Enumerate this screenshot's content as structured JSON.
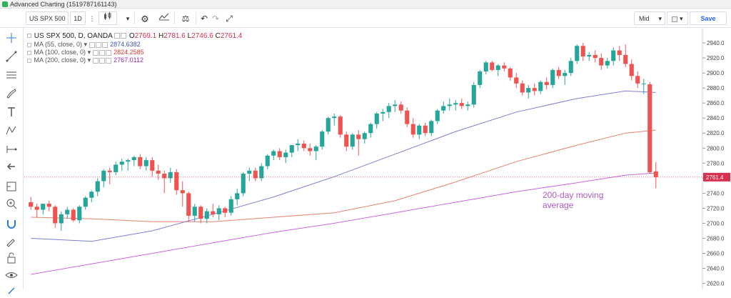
{
  "window_title": "Advanced Charting (1519787161143)",
  "toolbar": {
    "symbol": "US SPX 500",
    "interval": "1D",
    "price_type": "Mid",
    "save_label": "Save"
  },
  "legend": {
    "symbol_line": "US SPX 500, D, OANDA",
    "open_label": "O",
    "open": "2769.1",
    "high_label": "H",
    "high": "2781.6",
    "low_label": "L",
    "low": "2746.6",
    "close_label": "C",
    "close": "2761.4",
    "studies": [
      {
        "label": "MA (55, close, 0)",
        "value": "2874.6382",
        "color": "#3f51b5"
      },
      {
        "label": "MA (100, close, 0)",
        "value": "2824.2585",
        "color": "#e53935"
      },
      {
        "label": "MA (200, close, 0)",
        "value": "2767.0112",
        "color": "#9c27b0"
      }
    ]
  },
  "colors": {
    "up": "#26a69a",
    "down": "#ef5350",
    "ma55": "#7b7fd4",
    "ma100": "#e9826f",
    "ma200": "#cc66e0",
    "last_price": "#d9304f"
  },
  "chart_data": {
    "type": "candlestick",
    "title": "",
    "ylim": [
      2612,
      2960
    ],
    "y_ticks": [
      "2940.0",
      "2920.0",
      "2900.0",
      "2880.0",
      "2860.0",
      "2840.0",
      "2820.0",
      "2800.0",
      "2780.0",
      "2760.0",
      "2740.0",
      "2720.0",
      "2700.0",
      "2680.0",
      "2660.0",
      "2640.0",
      "2620.0"
    ],
    "last_price_label": "2761.4",
    "annotation": [
      "200-day moving",
      "average"
    ],
    "candles": [
      [
        2728,
        2735,
        2718,
        2722
      ],
      [
        2722,
        2726,
        2708,
        2718
      ],
      [
        2718,
        2724,
        2712,
        2726
      ],
      [
        2726,
        2730,
        2716,
        2722
      ],
      [
        2722,
        2724,
        2694,
        2700
      ],
      [
        2700,
        2716,
        2690,
        2712
      ],
      [
        2712,
        2722,
        2706,
        2718
      ],
      [
        2718,
        2720,
        2702,
        2704
      ],
      [
        2704,
        2724,
        2700,
        2722
      ],
      [
        2722,
        2736,
        2718,
        2734
      ],
      [
        2734,
        2744,
        2728,
        2742
      ],
      [
        2742,
        2760,
        2736,
        2756
      ],
      [
        2756,
        2772,
        2748,
        2770
      ],
      [
        2770,
        2774,
        2752,
        2768
      ],
      [
        2768,
        2782,
        2764,
        2778
      ],
      [
        2778,
        2786,
        2770,
        2782
      ],
      [
        2782,
        2786,
        2770,
        2784
      ],
      [
        2784,
        2790,
        2776,
        2788
      ],
      [
        2788,
        2792,
        2772,
        2776
      ],
      [
        2776,
        2788,
        2770,
        2784
      ],
      [
        2784,
        2788,
        2762,
        2770
      ],
      [
        2770,
        2778,
        2758,
        2766
      ],
      [
        2766,
        2770,
        2740,
        2760
      ],
      [
        2760,
        2774,
        2754,
        2768
      ],
      [
        2768,
        2772,
        2738,
        2744
      ],
      [
        2744,
        2756,
        2722,
        2740
      ],
      [
        2740,
        2742,
        2702,
        2710
      ],
      [
        2710,
        2726,
        2702,
        2722
      ],
      [
        2722,
        2724,
        2700,
        2706
      ],
      [
        2706,
        2720,
        2700,
        2716
      ],
      [
        2716,
        2726,
        2708,
        2712
      ],
      [
        2712,
        2724,
        2704,
        2720
      ],
      [
        2720,
        2722,
        2708,
        2714
      ],
      [
        2714,
        2736,
        2710,
        2732
      ],
      [
        2732,
        2746,
        2724,
        2740
      ],
      [
        2740,
        2768,
        2736,
        2766
      ],
      [
        2766,
        2774,
        2756,
        2770
      ],
      [
        2770,
        2774,
        2756,
        2760
      ],
      [
        2760,
        2780,
        2756,
        2776
      ],
      [
        2776,
        2792,
        2772,
        2790
      ],
      [
        2790,
        2798,
        2784,
        2796
      ],
      [
        2796,
        2800,
        2784,
        2788
      ],
      [
        2788,
        2798,
        2780,
        2794
      ],
      [
        2794,
        2804,
        2788,
        2804
      ],
      [
        2804,
        2812,
        2796,
        2806
      ],
      [
        2806,
        2810,
        2796,
        2800
      ],
      [
        2800,
        2806,
        2790,
        2796
      ],
      [
        2796,
        2804,
        2784,
        2802
      ],
      [
        2802,
        2824,
        2798,
        2822
      ],
      [
        2822,
        2842,
        2818,
        2840
      ],
      [
        2840,
        2846,
        2830,
        2842
      ],
      [
        2842,
        2844,
        2814,
        2818
      ],
      [
        2818,
        2822,
        2796,
        2802
      ],
      [
        2802,
        2820,
        2798,
        2818
      ],
      [
        2818,
        2824,
        2790,
        2812
      ],
      [
        2812,
        2822,
        2806,
        2820
      ],
      [
        2820,
        2834,
        2814,
        2832
      ],
      [
        2832,
        2848,
        2826,
        2846
      ],
      [
        2846,
        2852,
        2836,
        2848
      ],
      [
        2848,
        2860,
        2840,
        2856
      ],
      [
        2856,
        2864,
        2848,
        2858
      ],
      [
        2858,
        2862,
        2846,
        2850
      ],
      [
        2850,
        2854,
        2828,
        2832
      ],
      [
        2832,
        2840,
        2814,
        2818
      ],
      [
        2818,
        2832,
        2812,
        2830
      ],
      [
        2830,
        2834,
        2816,
        2820
      ],
      [
        2820,
        2838,
        2816,
        2836
      ],
      [
        2836,
        2852,
        2832,
        2850
      ],
      [
        2850,
        2862,
        2846,
        2856
      ],
      [
        2856,
        2866,
        2850,
        2858
      ],
      [
        2858,
        2864,
        2850,
        2860
      ],
      [
        2860,
        2866,
        2852,
        2856
      ],
      [
        2856,
        2862,
        2850,
        2858
      ],
      [
        2858,
        2888,
        2854,
        2884
      ],
      [
        2884,
        2904,
        2880,
        2902
      ],
      [
        2902,
        2916,
        2898,
        2914
      ],
      [
        2914,
        2916,
        2902,
        2904
      ],
      [
        2904,
        2912,
        2896,
        2910
      ],
      [
        2910,
        2914,
        2902,
        2906
      ],
      [
        2906,
        2908,
        2890,
        2894
      ],
      [
        2894,
        2900,
        2880,
        2886
      ],
      [
        2886,
        2890,
        2870,
        2874
      ],
      [
        2874,
        2884,
        2866,
        2880
      ],
      [
        2880,
        2886,
        2870,
        2876
      ],
      [
        2876,
        2890,
        2872,
        2888
      ],
      [
        2888,
        2894,
        2878,
        2884
      ],
      [
        2884,
        2906,
        2880,
        2904
      ],
      [
        2904,
        2908,
        2892,
        2896
      ],
      [
        2896,
        2904,
        2884,
        2900
      ],
      [
        2900,
        2920,
        2896,
        2916
      ],
      [
        2916,
        2938,
        2912,
        2936
      ],
      [
        2936,
        2940,
        2916,
        2922
      ],
      [
        2922,
        2928,
        2916,
        2924
      ],
      [
        2924,
        2930,
        2914,
        2920
      ],
      [
        2920,
        2926,
        2904,
        2910
      ],
      [
        2910,
        2920,
        2906,
        2916
      ],
      [
        2916,
        2934,
        2910,
        2930
      ],
      [
        2930,
        2936,
        2916,
        2924
      ],
      [
        2924,
        2938,
        2908,
        2912
      ],
      [
        2912,
        2918,
        2890,
        2896
      ],
      [
        2896,
        2902,
        2880,
        2886
      ],
      [
        2886,
        2892,
        2872,
        2886
      ],
      [
        2885,
        2888,
        2766,
        2768
      ],
      [
        2769.1,
        2781.6,
        2746.6,
        2761.4
      ]
    ],
    "ma55": [
      [
        0,
        2680
      ],
      [
        10,
        2676
      ],
      [
        20,
        2690
      ],
      [
        30,
        2712
      ],
      [
        40,
        2735
      ],
      [
        50,
        2762
      ],
      [
        60,
        2792
      ],
      [
        70,
        2822
      ],
      [
        80,
        2848
      ],
      [
        90,
        2866
      ],
      [
        98,
        2876
      ],
      [
        103,
        2874
      ]
    ],
    "ma100": [
      [
        0,
        2708
      ],
      [
        10,
        2706
      ],
      [
        20,
        2702
      ],
      [
        30,
        2702
      ],
      [
        40,
        2708
      ],
      [
        50,
        2714
      ],
      [
        60,
        2730
      ],
      [
        70,
        2755
      ],
      [
        80,
        2782
      ],
      [
        90,
        2804
      ],
      [
        98,
        2820
      ],
      [
        103,
        2824
      ]
    ],
    "ma200": [
      [
        0,
        2632
      ],
      [
        10,
        2646
      ],
      [
        20,
        2660
      ],
      [
        30,
        2674
      ],
      [
        40,
        2688
      ],
      [
        50,
        2700
      ],
      [
        60,
        2714
      ],
      [
        70,
        2728
      ],
      [
        80,
        2742
      ],
      [
        90,
        2754
      ],
      [
        98,
        2764
      ],
      [
        103,
        2767
      ]
    ]
  }
}
